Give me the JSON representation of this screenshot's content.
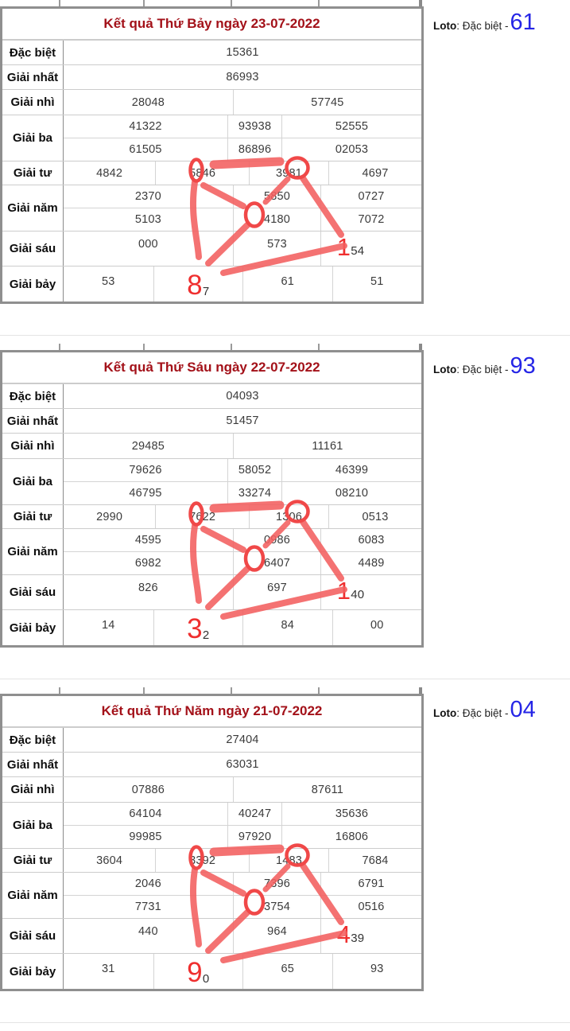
{
  "loto": {
    "prefix": "Loto",
    "middle": ": Đặc biệt - "
  },
  "tables": [
    {
      "title": "Kết quả Thứ Bảy ngày 23-07-2022",
      "loto_value": "61",
      "rows": [
        {
          "key": "dac-biet",
          "label": "Đặc biệt",
          "layout": "full",
          "lines": [
            [
              {
                "t": "15361"
              }
            ]
          ]
        },
        {
          "key": "giai-nhat",
          "label": "Giải nhất",
          "layout": "full",
          "lines": [
            [
              {
                "t": "86993"
              }
            ]
          ]
        },
        {
          "key": "giai-nhi",
          "label": "Giải nhì",
          "layout": "half",
          "lines": [
            [
              {
                "t": "28048"
              },
              {
                "t": "57745"
              }
            ]
          ]
        },
        {
          "key": "giai-ba",
          "label": "Giải ba",
          "layout": "ba3",
          "lines": [
            [
              {
                "t": "41322"
              },
              {
                "t": "93938"
              },
              {
                "t": "52555"
              }
            ],
            [
              {
                "t": "61505"
              },
              {
                "t": "86896"
              },
              {
                "t": "02053"
              }
            ]
          ]
        },
        {
          "key": "giai-tu",
          "label": "Giải tư",
          "layout": "tu4",
          "lines": [
            [
              {
                "t": "4842"
              },
              {
                "t": "5846"
              },
              {
                "t": "3981"
              },
              {
                "t": "4697"
              }
            ]
          ]
        },
        {
          "key": "giai-nam",
          "label": "Giải năm",
          "layout": "nam3",
          "lines": [
            [
              {
                "t": "2370"
              },
              {
                "t": "5850"
              },
              {
                "t": "0727"
              }
            ],
            [
              {
                "t": "5103"
              },
              {
                "t": "4180"
              },
              {
                "t": "7072"
              }
            ]
          ]
        },
        {
          "key": "giai-sau",
          "label": "Giải sáu",
          "layout": "nam3",
          "kind": "sau",
          "lines": [
            [
              {
                "t": "000"
              },
              {
                "t": "573"
              },
              {
                "red": "1",
                "rest": "54"
              }
            ]
          ]
        },
        {
          "key": "giai-bay",
          "label": "Giải bảy",
          "layout": "bay4",
          "kind": "bay",
          "lines": [
            [
              {
                "t": "53"
              },
              {
                "red": "8",
                "rest": "7"
              },
              {
                "t": "61"
              },
              {
                "t": "51"
              }
            ]
          ]
        }
      ],
      "annotation": {
        "circled_values": [
          "5846",
          "3981",
          "4180"
        ],
        "big_red_digits": [
          "8",
          "1"
        ]
      }
    },
    {
      "title": "Kết quả Thứ Sáu ngày 22-07-2022",
      "loto_value": "93",
      "rows": [
        {
          "key": "dac-biet",
          "label": "Đặc biệt",
          "layout": "full",
          "lines": [
            [
              {
                "t": "04093"
              }
            ]
          ]
        },
        {
          "key": "giai-nhat",
          "label": "Giải nhất",
          "layout": "full",
          "lines": [
            [
              {
                "t": "51457"
              }
            ]
          ]
        },
        {
          "key": "giai-nhi",
          "label": "Giải nhì",
          "layout": "half",
          "lines": [
            [
              {
                "t": "29485"
              },
              {
                "t": "11161"
              }
            ]
          ]
        },
        {
          "key": "giai-ba",
          "label": "Giải ba",
          "layout": "ba3",
          "lines": [
            [
              {
                "t": "79626"
              },
              {
                "t": "58052"
              },
              {
                "t": "46399"
              }
            ],
            [
              {
                "t": "46795"
              },
              {
                "t": "33274"
              },
              {
                "t": "08210"
              }
            ]
          ]
        },
        {
          "key": "giai-tu",
          "label": "Giải tư",
          "layout": "tu4",
          "lines": [
            [
              {
                "t": "2990"
              },
              {
                "t": "7622"
              },
              {
                "t": "1306"
              },
              {
                "t": "0513"
              }
            ]
          ]
        },
        {
          "key": "giai-nam",
          "label": "Giải năm",
          "layout": "nam3",
          "lines": [
            [
              {
                "t": "4595"
              },
              {
                "t": "0986"
              },
              {
                "t": "6083"
              }
            ],
            [
              {
                "t": "6982"
              },
              {
                "t": "6407"
              },
              {
                "t": "4489"
              }
            ]
          ]
        },
        {
          "key": "giai-sau",
          "label": "Giải sáu",
          "layout": "nam3",
          "kind": "sau",
          "lines": [
            [
              {
                "t": "826"
              },
              {
                "t": "697"
              },
              {
                "red": "1",
                "rest": "40"
              }
            ]
          ]
        },
        {
          "key": "giai-bay",
          "label": "Giải bảy",
          "layout": "bay4",
          "kind": "bay",
          "lines": [
            [
              {
                "t": "14"
              },
              {
                "red": "3",
                "rest": "2"
              },
              {
                "t": "84"
              },
              {
                "t": "00"
              }
            ]
          ]
        }
      ],
      "annotation": {
        "circled_values": [
          "7622",
          "1306",
          "6407"
        ],
        "big_red_digits": [
          "3",
          "1"
        ]
      }
    },
    {
      "title": "Kết quả Thứ Năm ngày 21-07-2022",
      "loto_value": "04",
      "rows": [
        {
          "key": "dac-biet",
          "label": "Đặc biệt",
          "layout": "full",
          "lines": [
            [
              {
                "t": "27404"
              }
            ]
          ]
        },
        {
          "key": "giai-nhat",
          "label": "Giải nhất",
          "layout": "full",
          "lines": [
            [
              {
                "t": "63031"
              }
            ]
          ]
        },
        {
          "key": "giai-nhi",
          "label": "Giải nhì",
          "layout": "half",
          "lines": [
            [
              {
                "t": "07886"
              },
              {
                "t": "87611"
              }
            ]
          ]
        },
        {
          "key": "giai-ba",
          "label": "Giải ba",
          "layout": "ba3",
          "lines": [
            [
              {
                "t": "64104"
              },
              {
                "t": "40247"
              },
              {
                "t": "35636"
              }
            ],
            [
              {
                "t": "99985"
              },
              {
                "t": "97920"
              },
              {
                "t": "16806"
              }
            ]
          ]
        },
        {
          "key": "giai-tu",
          "label": "Giải tư",
          "layout": "tu4",
          "lines": [
            [
              {
                "t": "3604"
              },
              {
                "t": "3392"
              },
              {
                "t": "1483"
              },
              {
                "t": "7684"
              }
            ]
          ]
        },
        {
          "key": "giai-nam",
          "label": "Giải năm",
          "layout": "nam3",
          "lines": [
            [
              {
                "t": "2046"
              },
              {
                "t": "7396"
              },
              {
                "t": "6791"
              }
            ],
            [
              {
                "t": "7731"
              },
              {
                "t": "3754"
              },
              {
                "t": "0516"
              }
            ]
          ]
        },
        {
          "key": "giai-sau",
          "label": "Giải sáu",
          "layout": "nam3",
          "kind": "sau",
          "lines": [
            [
              {
                "t": "440"
              },
              {
                "t": "964"
              },
              {
                "red": "4",
                "rest": "39"
              }
            ]
          ]
        },
        {
          "key": "giai-bay",
          "label": "Giải bảy",
          "layout": "bay4",
          "kind": "bay",
          "lines": [
            [
              {
                "t": "31"
              },
              {
                "red": "9",
                "rest": "0"
              },
              {
                "t": "65"
              },
              {
                "t": "93"
              }
            ]
          ]
        }
      ],
      "annotation": {
        "circled_values": [
          "3392",
          "1483",
          "3754"
        ],
        "big_red_digits": [
          "9",
          "4"
        ]
      }
    }
  ]
}
